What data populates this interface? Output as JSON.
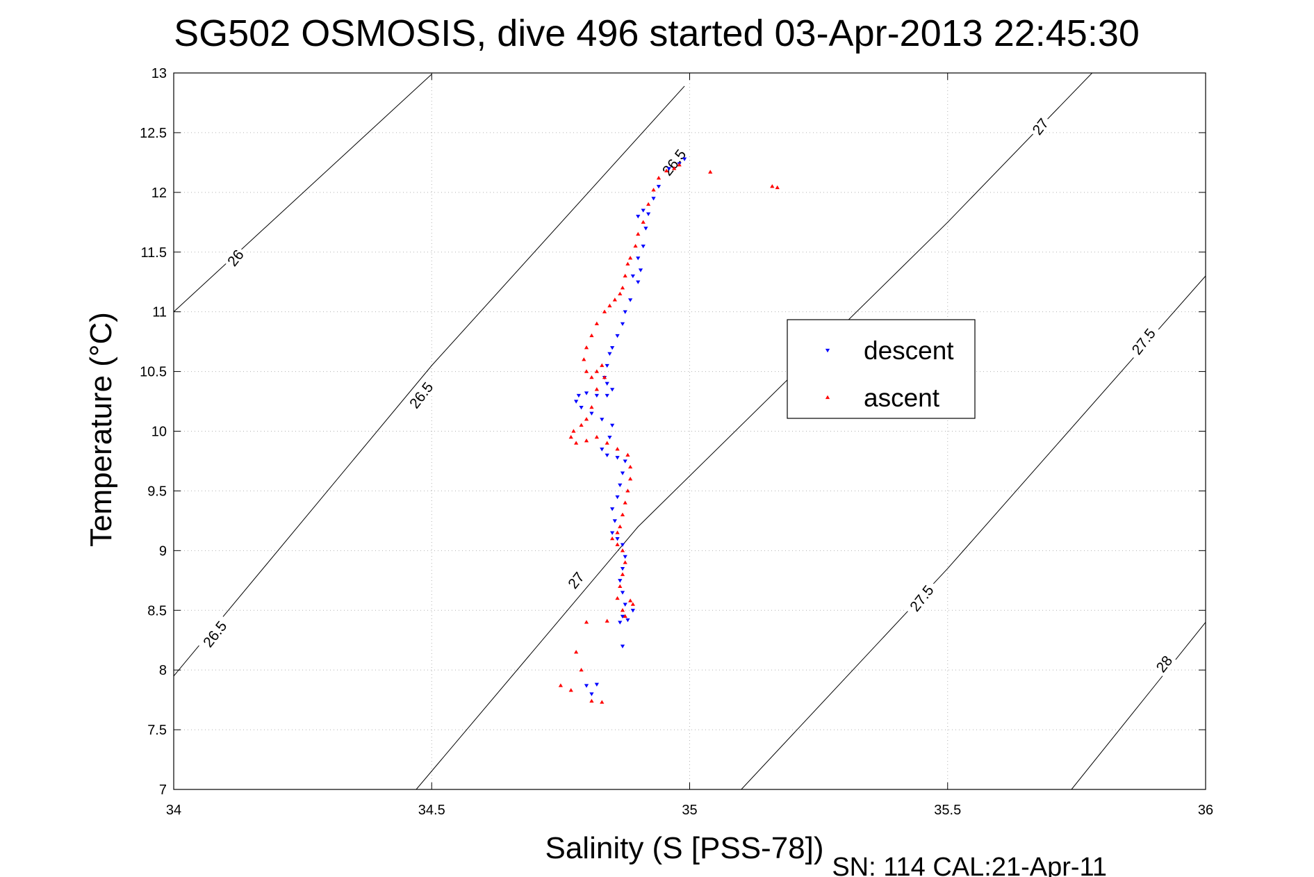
{
  "chart_data": {
    "type": "scatter",
    "title": "SG502 OSMOSIS, dive 496 started 03-Apr-2013 22:45:30",
    "xlabel": "Salinity (S [PSS-78])",
    "ylabel": "Temperature (°C)",
    "footer": "SN: 114  CAL:21-Apr-11",
    "xlim": [
      34,
      36
    ],
    "ylim": [
      7,
      13
    ],
    "xticks": [
      34,
      34.5,
      35,
      35.5,
      36
    ],
    "xtick_labels": [
      "34",
      "34.5",
      "35",
      "35.5",
      "36"
    ],
    "yticks": [
      7,
      7.5,
      8,
      8.5,
      9,
      9.5,
      10,
      10.5,
      11,
      11.5,
      12,
      12.5,
      13
    ],
    "ytick_labels": [
      "7",
      "7.5",
      "8",
      "8.5",
      "9",
      "9.5",
      "10",
      "10.5",
      "11",
      "11.5",
      "12",
      "12.5",
      "13"
    ],
    "grid": true,
    "legend": "center-right",
    "series": [
      {
        "name": "descent",
        "color": "#0000ff",
        "marker": "triangle-down",
        "points": [
          [
            34.99,
            12.28
          ],
          [
            34.98,
            12.24
          ],
          [
            34.96,
            12.2
          ],
          [
            34.94,
            12.05
          ],
          [
            34.93,
            11.95
          ],
          [
            34.91,
            11.85
          ],
          [
            34.9,
            11.8
          ],
          [
            34.92,
            11.82
          ],
          [
            34.915,
            11.7
          ],
          [
            34.91,
            11.55
          ],
          [
            34.9,
            11.45
          ],
          [
            34.905,
            11.35
          ],
          [
            34.89,
            11.3
          ],
          [
            34.9,
            11.25
          ],
          [
            34.885,
            11.1
          ],
          [
            34.875,
            11.0
          ],
          [
            34.87,
            10.9
          ],
          [
            34.86,
            10.8
          ],
          [
            34.85,
            10.7
          ],
          [
            34.845,
            10.65
          ],
          [
            34.84,
            10.55
          ],
          [
            34.835,
            10.45
          ],
          [
            34.84,
            10.4
          ],
          [
            34.85,
            10.35
          ],
          [
            34.84,
            10.3
          ],
          [
            34.82,
            10.3
          ],
          [
            34.8,
            10.32
          ],
          [
            34.785,
            10.3
          ],
          [
            34.78,
            10.25
          ],
          [
            34.79,
            10.2
          ],
          [
            34.81,
            10.15
          ],
          [
            34.83,
            10.1
          ],
          [
            34.85,
            10.05
          ],
          [
            34.845,
            9.95
          ],
          [
            34.83,
            9.85
          ],
          [
            34.84,
            9.8
          ],
          [
            34.86,
            9.78
          ],
          [
            34.875,
            9.75
          ],
          [
            34.87,
            9.65
          ],
          [
            34.865,
            9.55
          ],
          [
            34.86,
            9.45
          ],
          [
            34.85,
            9.35
          ],
          [
            34.855,
            9.25
          ],
          [
            34.85,
            9.15
          ],
          [
            34.86,
            9.1
          ],
          [
            34.87,
            9.05
          ],
          [
            34.875,
            8.95
          ],
          [
            34.87,
            8.85
          ],
          [
            34.865,
            8.75
          ],
          [
            34.87,
            8.65
          ],
          [
            34.875,
            8.55
          ],
          [
            34.87,
            8.45
          ],
          [
            34.865,
            8.4
          ],
          [
            34.88,
            8.42
          ],
          [
            34.89,
            8.5
          ],
          [
            34.87,
            8.2
          ],
          [
            34.82,
            7.88
          ],
          [
            34.8,
            7.87
          ],
          [
            34.81,
            7.8
          ]
        ]
      },
      {
        "name": "ascent",
        "color": "#ff0000",
        "marker": "triangle-up",
        "points": [
          [
            35.04,
            12.17
          ],
          [
            35.16,
            12.05
          ],
          [
            35.17,
            12.04
          ],
          [
            34.98,
            12.23
          ],
          [
            34.97,
            12.2
          ],
          [
            34.955,
            12.18
          ],
          [
            34.94,
            12.12
          ],
          [
            34.93,
            12.02
          ],
          [
            34.92,
            11.9
          ],
          [
            34.91,
            11.75
          ],
          [
            34.9,
            11.65
          ],
          [
            34.895,
            11.55
          ],
          [
            34.885,
            11.45
          ],
          [
            34.88,
            11.4
          ],
          [
            34.875,
            11.3
          ],
          [
            34.87,
            11.2
          ],
          [
            34.865,
            11.15
          ],
          [
            34.855,
            11.1
          ],
          [
            34.845,
            11.05
          ],
          [
            34.835,
            11.0
          ],
          [
            34.82,
            10.9
          ],
          [
            34.81,
            10.8
          ],
          [
            34.8,
            10.7
          ],
          [
            34.795,
            10.6
          ],
          [
            34.8,
            10.5
          ],
          [
            34.81,
            10.45
          ],
          [
            34.82,
            10.5
          ],
          [
            34.83,
            10.55
          ],
          [
            34.835,
            10.45
          ],
          [
            34.82,
            10.35
          ],
          [
            34.81,
            10.2
          ],
          [
            34.8,
            10.1
          ],
          [
            34.79,
            10.05
          ],
          [
            34.775,
            10.0
          ],
          [
            34.77,
            9.95
          ],
          [
            34.78,
            9.9
          ],
          [
            34.8,
            9.92
          ],
          [
            34.82,
            9.95
          ],
          [
            34.84,
            9.9
          ],
          [
            34.86,
            9.85
          ],
          [
            34.88,
            9.8
          ],
          [
            34.885,
            9.7
          ],
          [
            34.885,
            9.6
          ],
          [
            34.88,
            9.5
          ],
          [
            34.875,
            9.4
          ],
          [
            34.87,
            9.3
          ],
          [
            34.865,
            9.2
          ],
          [
            34.86,
            9.15
          ],
          [
            34.85,
            9.1
          ],
          [
            34.86,
            9.05
          ],
          [
            34.87,
            9.0
          ],
          [
            34.875,
            8.9
          ],
          [
            34.87,
            8.8
          ],
          [
            34.865,
            8.7
          ],
          [
            34.86,
            8.6
          ],
          [
            34.87,
            8.5
          ],
          [
            34.875,
            8.45
          ],
          [
            34.885,
            8.58
          ],
          [
            34.89,
            8.55
          ],
          [
            34.84,
            8.41
          ],
          [
            34.8,
            8.4
          ],
          [
            34.78,
            8.15
          ],
          [
            34.79,
            8.0
          ],
          [
            34.75,
            7.87
          ],
          [
            34.77,
            7.83
          ],
          [
            34.81,
            7.74
          ],
          [
            34.83,
            7.73
          ]
        ]
      }
    ],
    "density_contours": [
      {
        "label": "26",
        "points": [
          [
            34.0,
            11.0
          ],
          [
            34.5,
            12.99
          ]
        ],
        "label_at": [
          34.12,
          11.45
        ]
      },
      {
        "label": "26.5",
        "points": [
          [
            34.0,
            7.95
          ],
          [
            34.5,
            10.55
          ],
          [
            34.99,
            12.89
          ]
        ],
        "label_at": [
          34.08,
          8.3
        ]
      },
      {
        "label": "27",
        "points": [
          [
            34.47,
            7.0
          ],
          [
            34.9,
            9.2
          ],
          [
            35.5,
            11.75
          ],
          [
            35.78,
            13.0
          ]
        ],
        "label_at": [
          34.78,
          8.75
        ]
      },
      {
        "label": "27.5",
        "points": [
          [
            35.1,
            7.0
          ],
          [
            35.5,
            8.85
          ],
          [
            36.0,
            11.3
          ]
        ],
        "label_at": [
          35.45,
          8.6
        ]
      },
      {
        "label": "28",
        "points": [
          [
            35.74,
            7.0
          ],
          [
            36.0,
            8.4
          ]
        ],
        "label_at": [
          35.92,
          8.05
        ]
      }
    ],
    "extra_contour_labels": [
      {
        "label": "26.5",
        "at": [
          34.48,
          10.3
        ]
      },
      {
        "label": "26.5",
        "at": [
          34.97,
          12.25
        ]
      },
      {
        "label": "27",
        "at": [
          35.68,
          12.55
        ]
      },
      {
        "label": "27.5",
        "at": [
          35.88,
          10.75
        ]
      }
    ]
  }
}
